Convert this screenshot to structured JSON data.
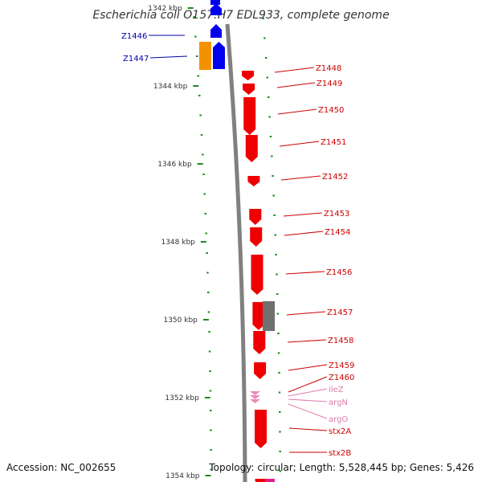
{
  "title": "Escherichia coli O157:H7 EDL933, complete genome",
  "footer": {
    "accession": "Accession: NC_002655",
    "topology": "Topology: circular; Length: 5,528,445 bp; Genes: 5,426"
  },
  "colors": {
    "backbone": "#808080",
    "forward_gene": "#0000ee",
    "reverse_gene": "#ee0000",
    "rna_gene": "#ee88bb",
    "other_gene": "#f39200",
    "pseudo_gene": "#707070",
    "tick": "#1e8a1e",
    "forward_label": "#0000aa",
    "reverse_label": "#cc0000",
    "rna_label": "#e07aaa"
  },
  "kbp_labels": [
    "1342 kbp",
    "1344 kbp",
    "1346 kbp",
    "1348 kbp",
    "1350 kbp",
    "1352 kbp",
    "1354 kbp"
  ],
  "labels": [
    {
      "text": "Z1446",
      "type": "forward"
    },
    {
      "text": "Z1447",
      "type": "forward"
    },
    {
      "text": "Z1448",
      "type": "reverse"
    },
    {
      "text": "Z1449",
      "type": "reverse"
    },
    {
      "text": "Z1450",
      "type": "reverse"
    },
    {
      "text": "Z1451",
      "type": "reverse"
    },
    {
      "text": "Z1452",
      "type": "reverse"
    },
    {
      "text": "Z1453",
      "type": "reverse"
    },
    {
      "text": "Z1454",
      "type": "reverse"
    },
    {
      "text": "Z1456",
      "type": "reverse"
    },
    {
      "text": "Z1457",
      "type": "reverse"
    },
    {
      "text": "Z1458",
      "type": "reverse"
    },
    {
      "text": "Z1459",
      "type": "reverse"
    },
    {
      "text": "Z1460",
      "type": "reverse"
    },
    {
      "text": "ileZ",
      "type": "rna"
    },
    {
      "text": "argN",
      "type": "rna"
    },
    {
      "text": "argO",
      "type": "rna"
    },
    {
      "text": "stx2A",
      "type": "reverse"
    },
    {
      "text": "stx2B",
      "type": "reverse"
    }
  ]
}
